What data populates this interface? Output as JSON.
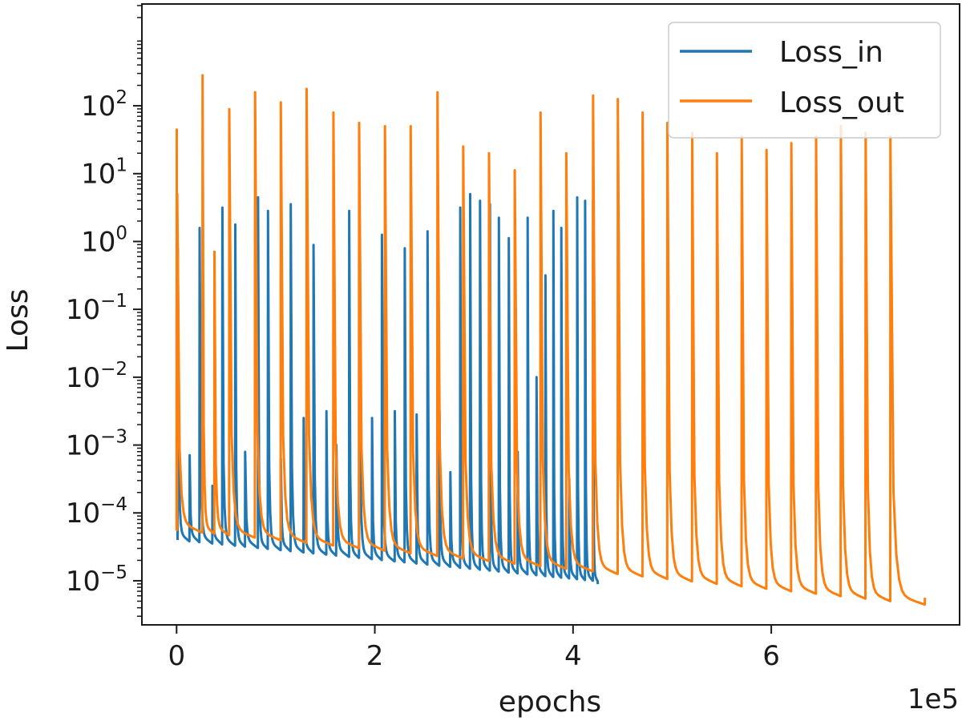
{
  "chart_data": {
    "type": "line",
    "title": "",
    "xlabel": "epochs",
    "ylabel": "Loss",
    "x_offset_label": "1e5",
    "xlim": [
      -0.35,
      7.9
    ],
    "ylim_log10": [
      -5.65,
      3.5
    ],
    "yscale": "log",
    "x_ticks": [
      {
        "value": 0,
        "label": "0"
      },
      {
        "value": 2,
        "label": "2"
      },
      {
        "value": 4,
        "label": "4"
      },
      {
        "value": 6,
        "label": "6"
      }
    ],
    "y_ticks": [
      {
        "exp": 2,
        "base": "10",
        "sup": "2"
      },
      {
        "exp": 1,
        "base": "10",
        "sup": "1"
      },
      {
        "exp": 0,
        "base": "10",
        "sup": "0"
      },
      {
        "exp": -1,
        "base": "10",
        "sup": "−1"
      },
      {
        "exp": -2,
        "base": "10",
        "sup": "−2"
      },
      {
        "exp": -3,
        "base": "10",
        "sup": "−3"
      },
      {
        "exp": -4,
        "base": "10",
        "sup": "−4"
      },
      {
        "exp": -5,
        "base": "10",
        "sup": "−5"
      }
    ],
    "legend_position": "top-right",
    "series": [
      {
        "name": "Loss_in",
        "color": "#1f77b4",
        "peaks_x": [
          0.01,
          0.13,
          0.23,
          0.36,
          0.46,
          0.59,
          0.69,
          0.82,
          0.92,
          1.05,
          1.15,
          1.28,
          1.38,
          1.51,
          1.61,
          1.74,
          1.84,
          1.97,
          2.07,
          2.2,
          2.3,
          2.42,
          2.53,
          2.65,
          2.76,
          2.86,
          2.96,
          3.06,
          3.16,
          3.25,
          3.35,
          3.44,
          3.54,
          3.63,
          3.72,
          3.8,
          3.88,
          3.96,
          4.04,
          4.12,
          4.2
        ],
        "peaks_log10": [
          -0.1,
          -3.15,
          0.2,
          -3.6,
          0.5,
          0.25,
          -3.1,
          0.65,
          0.45,
          -3.2,
          0.55,
          -2.6,
          -0.05,
          -2.5,
          -3.0,
          0.45,
          0.75,
          -2.6,
          0.1,
          -2.5,
          -0.1,
          -2.55,
          0.15,
          -2.5,
          -3.4,
          0.5,
          0.7,
          0.6,
          0.55,
          0.35,
          0.05,
          -3.1,
          0.35,
          -2.0,
          -0.5,
          0.45,
          0.2,
          -3.5,
          0.65,
          0.6,
          0.6
        ],
        "trough_start_log10": -4.4,
        "trough_end_log10": -5.0,
        "end_x": 4.25,
        "end_log10": -5.05
      },
      {
        "name": "Loss_out",
        "color": "#ff7f0e",
        "peaks_x": [
          0.0,
          0.26,
          0.53,
          0.79,
          1.05,
          1.31,
          1.58,
          1.84,
          2.1,
          2.36,
          2.63,
          2.89,
          3.15,
          3.41,
          3.67,
          3.93,
          4.2,
          4.45,
          4.7,
          4.95,
          5.2,
          5.45,
          5.7,
          5.95,
          6.2,
          6.45,
          6.7,
          6.95,
          7.2
        ],
        "peaks_log10": [
          1.65,
          2.45,
          1.95,
          2.2,
          2.05,
          2.25,
          1.9,
          1.75,
          1.7,
          1.7,
          2.2,
          1.4,
          1.3,
          1.05,
          1.9,
          1.3,
          2.15,
          2.1,
          1.9,
          1.75,
          1.6,
          1.3,
          1.55,
          1.35,
          1.45,
          1.55,
          1.7,
          1.6,
          1.55
        ],
        "secondary_peaks": [
          {
            "x": 0.005,
            "log10": 0.7
          },
          {
            "x": 0.38,
            "log10": -0.15
          }
        ],
        "trough_start_log10": -4.25,
        "trough_end_log10": -5.3,
        "end_x": 7.55,
        "end_log10": -5.25
      }
    ]
  }
}
